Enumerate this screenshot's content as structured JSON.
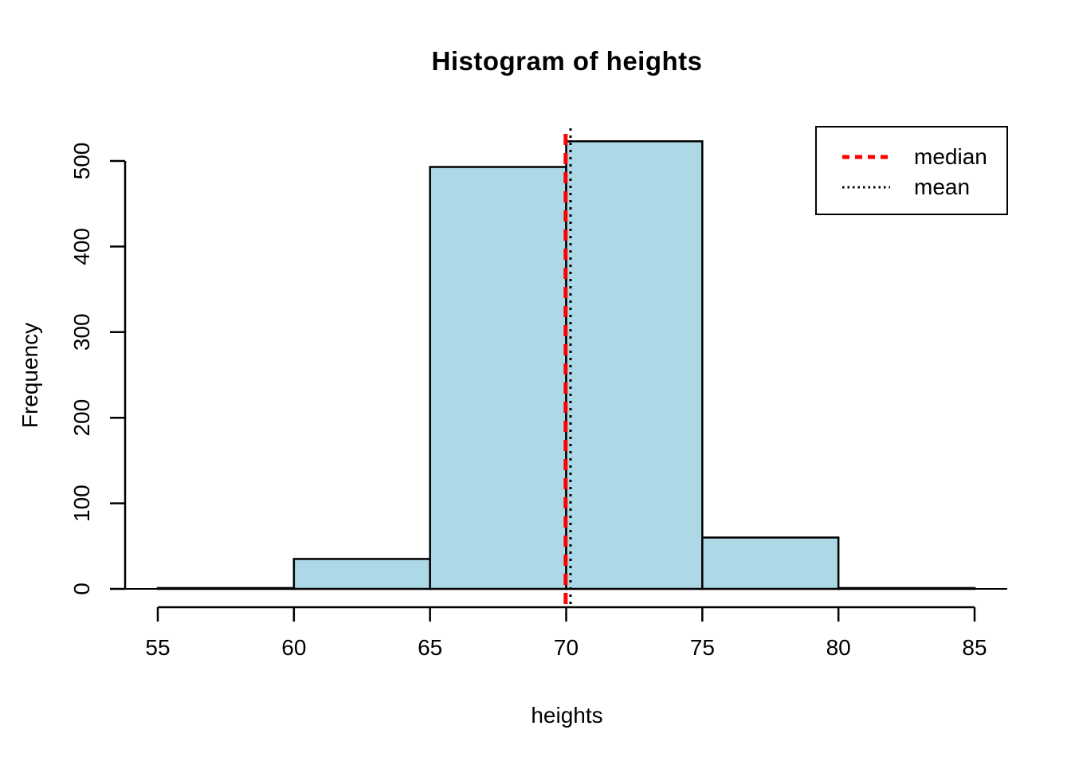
{
  "chart_data": {
    "type": "bar",
    "subtype": "histogram",
    "title": "Histogram of heights",
    "xlabel": "heights",
    "ylabel": "Frequency",
    "bin_edges": [
      55,
      60,
      65,
      70,
      75,
      80,
      85
    ],
    "counts": [
      1,
      35,
      493,
      523,
      60,
      1
    ],
    "x_tick_values": [
      55,
      60,
      65,
      70,
      75,
      80,
      85
    ],
    "y_tick_values": [
      0,
      100,
      200,
      300,
      400,
      500
    ],
    "x_range": [
      55,
      85
    ],
    "y_range": [
      0,
      523
    ],
    "grid": false,
    "bar_fill": "#ADD8E6",
    "bar_stroke": "#000000",
    "axis_color": "#000000",
    "vlines": [
      {
        "name": "median",
        "label": "median",
        "x": 69.98,
        "color": "#FF0000",
        "style": "dashed"
      },
      {
        "name": "mean",
        "label": "mean",
        "x": 70.16,
        "color": "#000000",
        "style": "dotted"
      }
    ],
    "legend": {
      "position": "top-right",
      "entries": [
        "median",
        "mean"
      ]
    }
  }
}
